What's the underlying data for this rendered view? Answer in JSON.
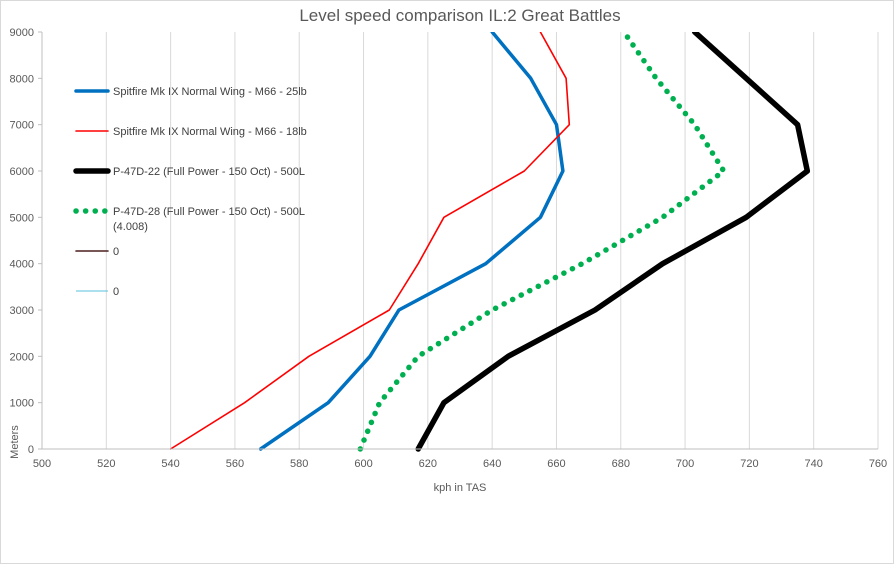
{
  "chart_data": {
    "type": "line",
    "title": "Level speed comparison IL:2 Great Battles",
    "xlabel": "kph in TAS",
    "ylabel": "Meters",
    "xlim": [
      500,
      760
    ],
    "ylim": [
      0,
      9000
    ],
    "x_ticks": [
      500,
      520,
      540,
      560,
      580,
      600,
      620,
      640,
      660,
      680,
      700,
      720,
      740,
      760
    ],
    "y_ticks": [
      0,
      1000,
      2000,
      3000,
      4000,
      5000,
      6000,
      7000,
      8000,
      9000
    ],
    "grid": "vertical",
    "legend_position": "left",
    "series": [
      {
        "name": "Spitfire Mk  IX Normal Wing - M66 - 25lb",
        "color": "#0070c0",
        "style": "solid-thick",
        "points": [
          [
            568,
            0
          ],
          [
            589,
            1000
          ],
          [
            602,
            2000
          ],
          [
            611,
            3000
          ],
          [
            638,
            4000
          ],
          [
            655,
            5000
          ],
          [
            662,
            6000
          ],
          [
            660,
            7000
          ],
          [
            652,
            8000
          ],
          [
            640,
            9000
          ]
        ]
      },
      {
        "name": "Spitfire Mk  IX Normal Wing - M66 - 18lb",
        "color": "#ff0000",
        "style": "solid-thin",
        "points": [
          [
            540,
            0
          ],
          [
            563,
            1000
          ],
          [
            583,
            2000
          ],
          [
            608,
            3000
          ],
          [
            617,
            4000
          ],
          [
            625,
            5000
          ],
          [
            650,
            6000
          ],
          [
            664,
            7000
          ],
          [
            663,
            8000
          ],
          [
            655,
            9000
          ]
        ]
      },
      {
        "name": "P-47D-22 (Full Power - 150 Oct) - 500L",
        "color": "#000000",
        "style": "solid-heavy",
        "points": [
          [
            617,
            0
          ],
          [
            625,
            1000
          ],
          [
            645,
            2000
          ],
          [
            672,
            3000
          ],
          [
            693,
            4000
          ],
          [
            719,
            5000
          ],
          [
            738,
            6000
          ],
          [
            735,
            7000
          ],
          [
            719,
            8000
          ],
          [
            703,
            9000
          ]
        ]
      },
      {
        "name": "P-47D-28 (Full Power - 150 Oct) - 500L (4.008)",
        "color": "#00b050",
        "style": "dotted",
        "points": [
          [
            599,
            0
          ],
          [
            605,
            1000
          ],
          [
            617,
            2000
          ],
          [
            640,
            3000
          ],
          [
            668,
            4000
          ],
          [
            693,
            5000
          ],
          [
            712,
            6000
          ],
          [
            703,
            7000
          ],
          [
            691,
            8000
          ],
          [
            681,
            9000
          ]
        ]
      },
      {
        "name": "0",
        "color": "#4d1f1f",
        "style": "solid-thin",
        "points": []
      },
      {
        "name": "0",
        "color": "#5bc0de",
        "style": "solid-hair",
        "points": []
      }
    ]
  }
}
